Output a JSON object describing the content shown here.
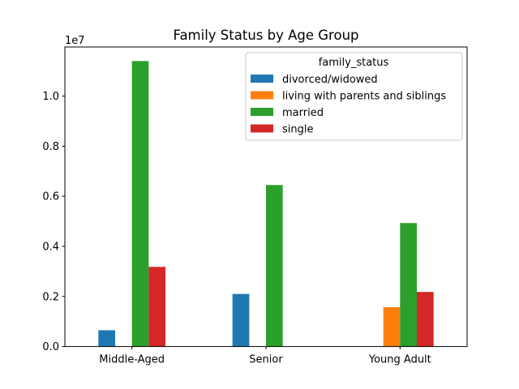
{
  "chart_data": {
    "type": "bar",
    "title": "Family Status by Age Group",
    "xlabel": "",
    "ylabel": "",
    "y_multiplier_label": "1e7",
    "categories": [
      "Middle-Aged",
      "Senior",
      "Young Adult"
    ],
    "ylim": [
      0,
      11960000
    ],
    "yticks": [
      0,
      2000000,
      4000000,
      6000000,
      8000000,
      10000000
    ],
    "ytick_labels": [
      "0.0",
      "0.2",
      "0.4",
      "0.6",
      "0.8",
      "1.0"
    ],
    "grid": false,
    "legend": {
      "title": "family_status",
      "position": "top-right"
    },
    "series": [
      {
        "name": "divorced/widowed",
        "color": "#1f77b4",
        "values": [
          650000,
          2100000,
          0
        ]
      },
      {
        "name": "living with parents and siblings",
        "color": "#ff7f0e",
        "values": [
          0,
          0,
          1570000
        ]
      },
      {
        "name": "married",
        "color": "#2ca02c",
        "values": [
          11400000,
          6450000,
          4930000
        ]
      },
      {
        "name": "single",
        "color": "#d62728",
        "values": [
          3180000,
          0,
          2180000
        ]
      }
    ]
  }
}
